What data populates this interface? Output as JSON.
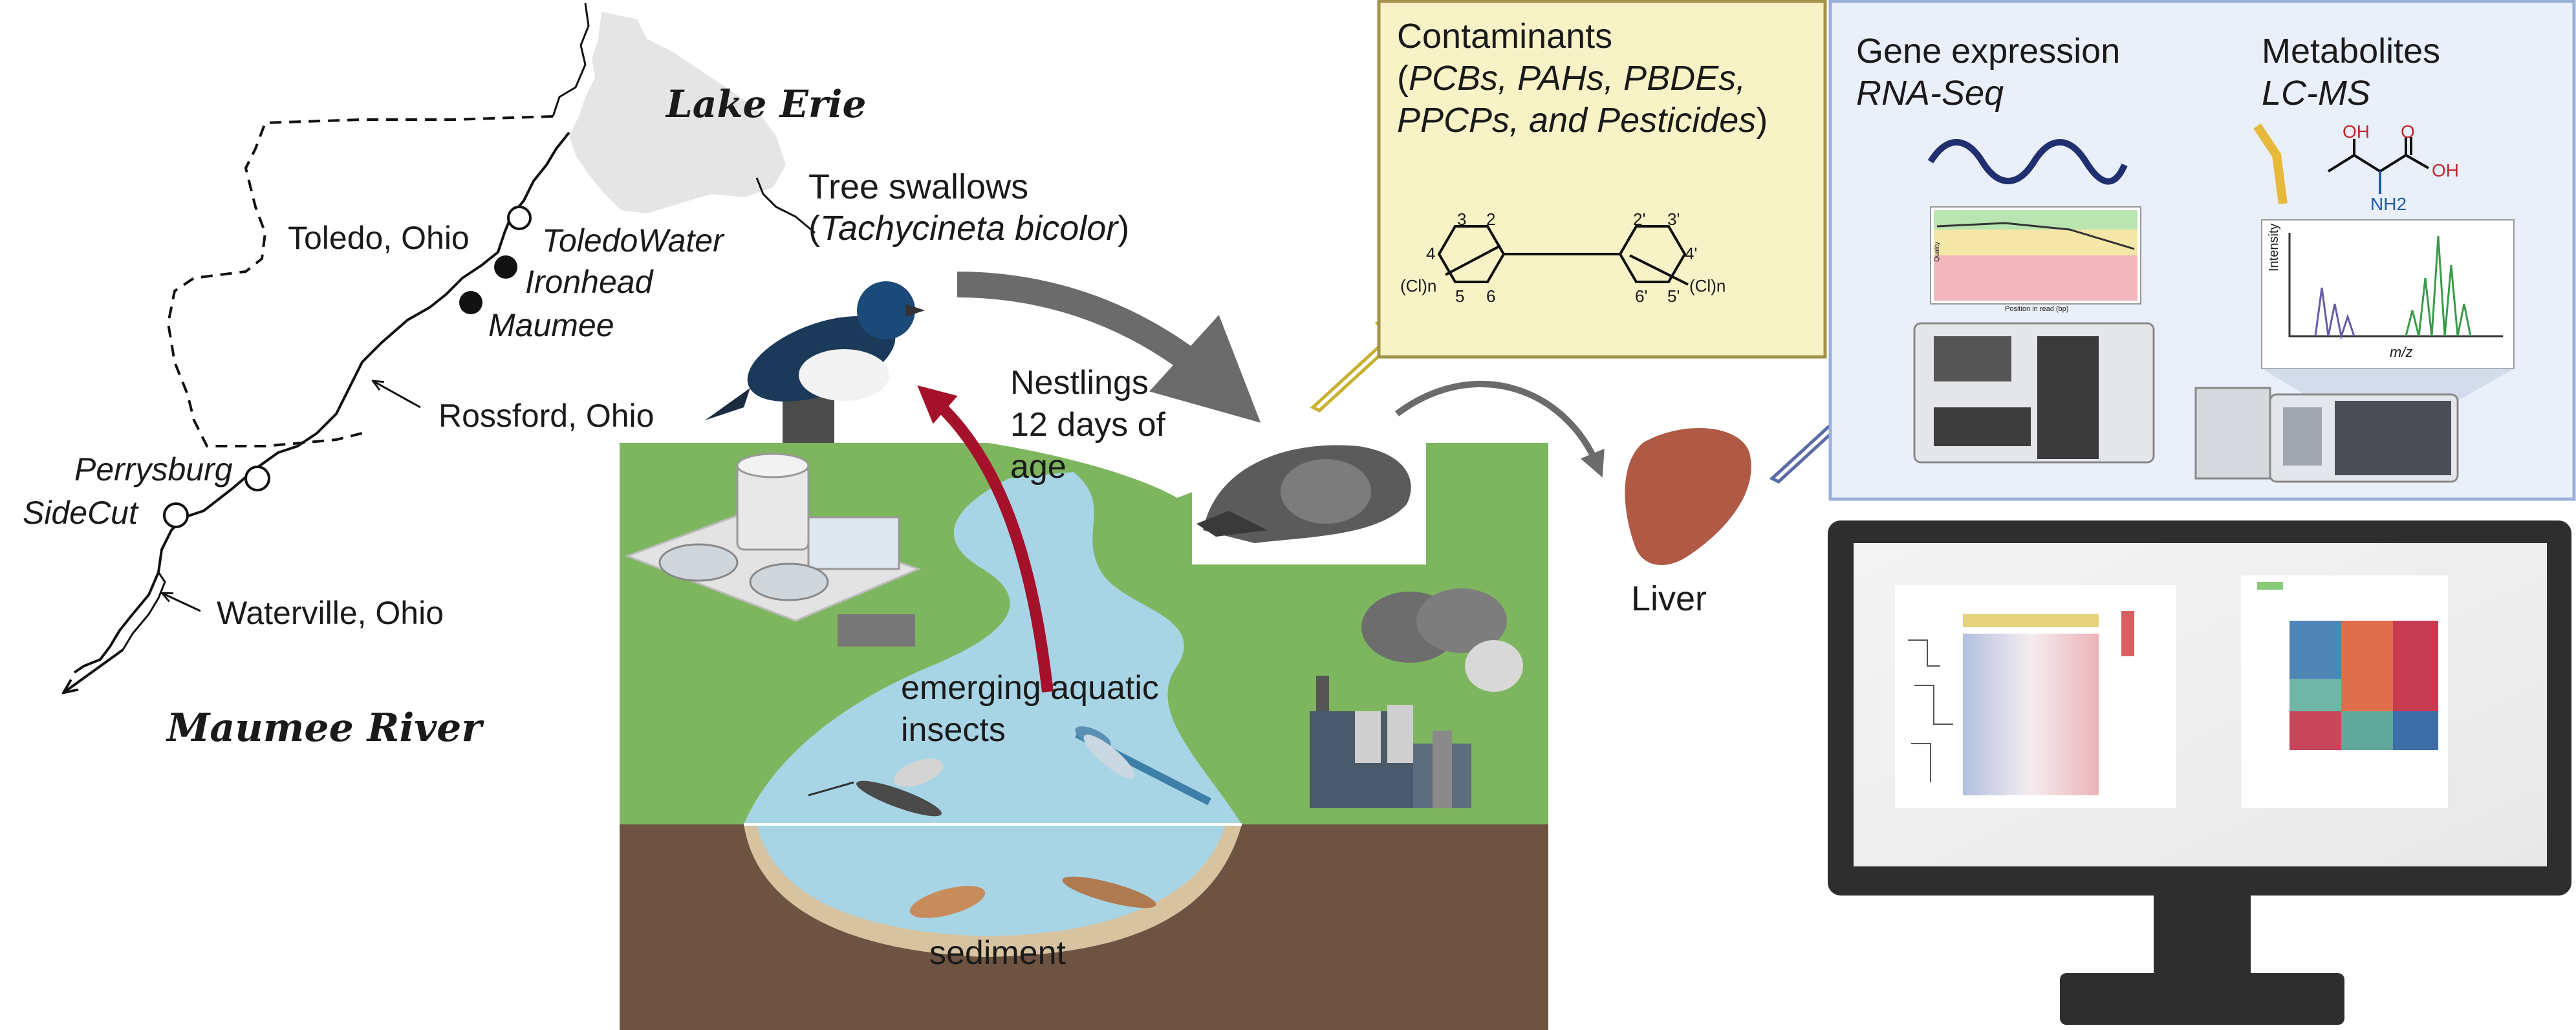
{
  "map": {
    "lake": "Lake Erie",
    "river": "Maumee River",
    "towns": [
      "Toledo, Ohio",
      "Rossford, Ohio",
      "Waterville, Ohio"
    ],
    "sites": [
      "ToledoWater",
      "Ironhead",
      "Maumee",
      "Perrysburg",
      "SideCut"
    ]
  },
  "birds": {
    "name": "Tree swallows",
    "latin_open": "(",
    "latin": "Tachycineta bicolor",
    "latin_close": ")",
    "nestlings": [
      "Nestlings",
      "12 days of",
      "age"
    ]
  },
  "habitat": {
    "insects": [
      "emerging aquatic",
      "insects"
    ],
    "sediment": "sediment"
  },
  "contaminants": {
    "title": "Contaminants",
    "line2_open": "(",
    "line2": "PCBs, PAHs, PBDEs,",
    "line3": "PPCPs, and Pesticides",
    "line3_close": ")",
    "pcb_labels": [
      "3",
      "2",
      "2'",
      "3'",
      "4",
      "4'",
      "5",
      "6",
      "6'",
      "5'",
      "(Cl)n",
      "(Cl)n"
    ]
  },
  "liver": "Liver",
  "omics": {
    "gene_title": "Gene expression",
    "gene_method": "RNA-Seq",
    "met_title": "Metabolites",
    "met_method": "LC-MS",
    "chem": [
      "OH",
      "O",
      "OH",
      "NH2"
    ],
    "spectrum_y": "Intensity",
    "spectrum_x": "m/z",
    "quality_y": "Quality",
    "quality_x": "Position in read (bp)"
  },
  "colors": {
    "contam_box": "#f8f2c7",
    "omics_box": "#e9f0fa",
    "grass": "#7db65f",
    "water": "#a8d5e6",
    "soil": "#6f5342",
    "red_arrow": "#a5102a",
    "grey_arrow": "#6b6b6b"
  }
}
